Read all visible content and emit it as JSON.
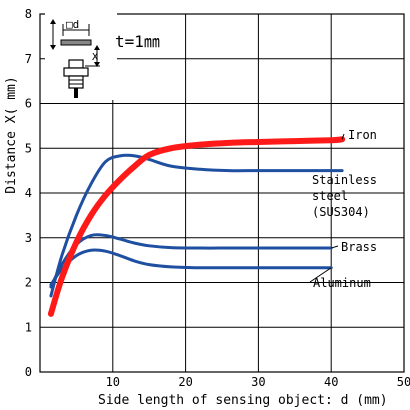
{
  "chart_data": {
    "type": "line",
    "xlabel": "Side length of sensing object: d (mm)",
    "ylabel": "Distance X( mm)",
    "xlim": [
      0,
      50
    ],
    "ylim": [
      0,
      8
    ],
    "x_ticks": [
      "10",
      "20",
      "30",
      "40",
      "50"
    ],
    "y_ticks": [
      "0",
      "1",
      "2",
      "3",
      "4",
      "5",
      "6",
      "7",
      "8"
    ],
    "grid": true,
    "annotation": "t=1㎜",
    "inset_label": "□d",
    "inset_dimension": "X",
    "colors": {
      "iron": "#ff1a1a",
      "other": "#1f4fa0",
      "grid": "#000000"
    },
    "series": [
      {
        "name": "Iron",
        "color": "#ff1a1a",
        "x": [
          1.5,
          3,
          5,
          7,
          9,
          11,
          13,
          15,
          18,
          22,
          26,
          30,
          35,
          40,
          41.5
        ],
        "y": [
          1.3,
          2.1,
          2.9,
          3.5,
          3.95,
          4.3,
          4.6,
          4.85,
          5.0,
          5.08,
          5.12,
          5.14,
          5.16,
          5.18,
          5.2
        ]
      },
      {
        "name": "Stainless steel (SUS304)",
        "color": "#1f4fa0",
        "x": [
          1.5,
          3,
          5,
          7,
          9,
          11,
          13,
          15,
          18,
          22,
          26,
          30,
          35,
          40,
          41.5
        ],
        "y": [
          1.7,
          2.6,
          3.5,
          4.2,
          4.7,
          4.83,
          4.83,
          4.75,
          4.6,
          4.53,
          4.5,
          4.5,
          4.5,
          4.5,
          4.5
        ]
      },
      {
        "name": "Brass",
        "color": "#1f4fa0",
        "x": [
          1.5,
          3,
          5,
          7,
          9,
          11,
          13,
          15,
          18,
          22,
          26,
          30,
          35,
          40
        ],
        "y": [
          1.9,
          2.4,
          2.85,
          3.05,
          3.05,
          2.97,
          2.88,
          2.82,
          2.78,
          2.77,
          2.77,
          2.77,
          2.77,
          2.77
        ]
      },
      {
        "name": "Aluminum",
        "color": "#1f4fa0",
        "x": [
          1.5,
          3,
          5,
          7,
          9,
          11,
          13,
          15,
          18,
          22,
          26,
          30,
          35,
          40
        ],
        "y": [
          1.95,
          2.3,
          2.6,
          2.72,
          2.7,
          2.6,
          2.48,
          2.4,
          2.35,
          2.33,
          2.33,
          2.33,
          2.33,
          2.33
        ]
      }
    ],
    "series_labels": {
      "iron": "Iron",
      "stainless_1": "Stainless",
      "stainless_2": "steel",
      "stainless_3": "(SUS304)",
      "brass": "Brass",
      "aluminum": "Aluminum"
    }
  }
}
